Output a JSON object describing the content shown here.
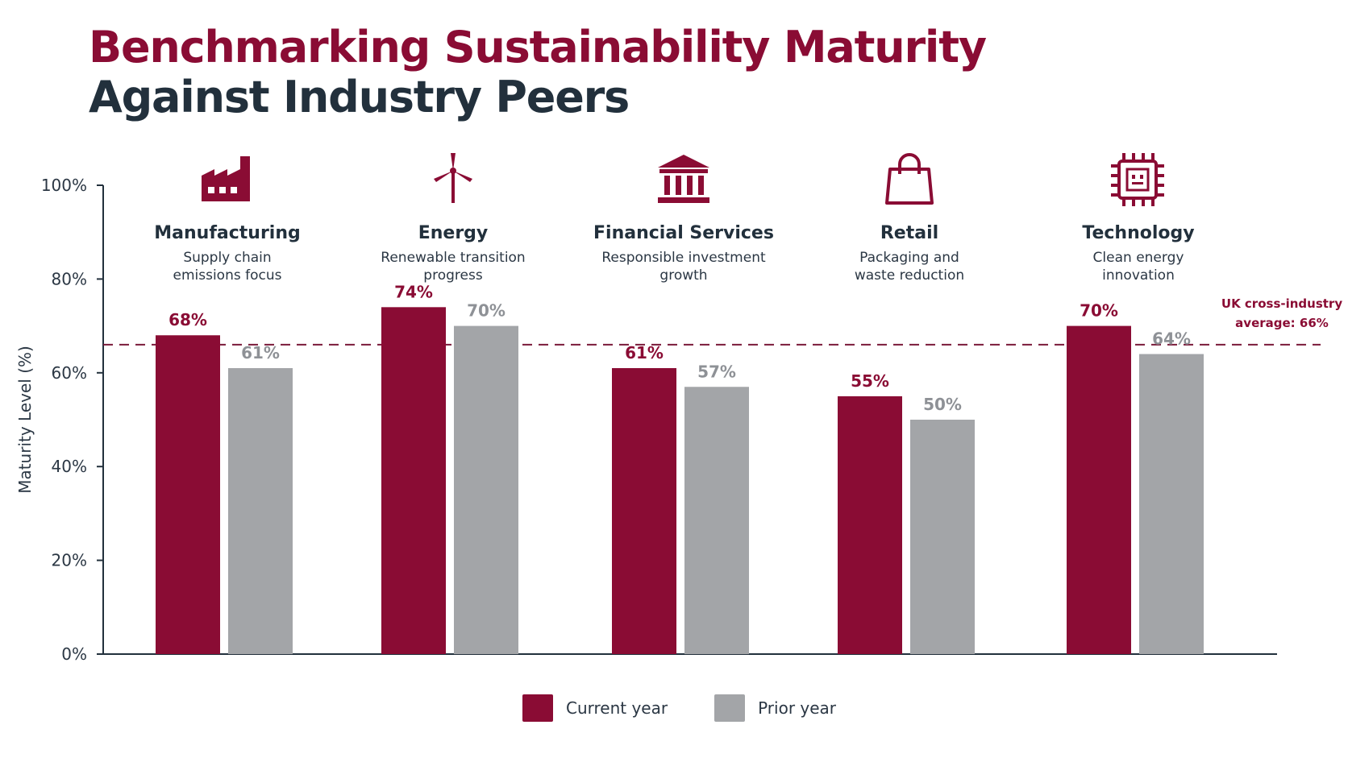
{
  "title": {
    "line1": "Benchmarking Sustainability Maturity",
    "line2": "Against Industry Peers"
  },
  "colors": {
    "current": "#8a0c34",
    "prior": "#a3a5a8",
    "title_primary": "#8a0c34",
    "title_secondary": "#22303c",
    "axis": "#22303c",
    "reference": "#7a1a3a"
  },
  "chart_data": {
    "type": "bar",
    "categories": [
      "Manufacturing",
      "Energy",
      "Financial Services",
      "Retail",
      "Technology"
    ],
    "category_subtitles": [
      [
        "Supply chain",
        "emissions focus"
      ],
      [
        "Renewable transition",
        "progress"
      ],
      [
        "Responsible investment",
        "growth"
      ],
      [
        "Packaging and",
        "waste reduction"
      ],
      [
        "Clean energy",
        "innovation"
      ]
    ],
    "category_icons": [
      "factory-icon",
      "wind-turbine-icon",
      "bank-icon",
      "shopping-bag-icon",
      "chip-icon"
    ],
    "series": [
      {
        "name": "Current year",
        "values": [
          68,
          74,
          61,
          55,
          70
        ]
      },
      {
        "name": "Prior year",
        "values": [
          61,
          70,
          57,
          50,
          64
        ]
      }
    ],
    "data_labels": {
      "Current year": [
        "68%",
        "74%",
        "61%",
        "55%",
        "70%"
      ],
      "Prior year": [
        "61%",
        "70%",
        "57%",
        "50%",
        "64%"
      ]
    },
    "ylabel": "Maturity Level (%)",
    "ylim": [
      0,
      100
    ],
    "yticks": [
      0,
      20,
      40,
      60,
      80,
      100
    ],
    "ytick_labels": [
      "0%",
      "20%",
      "40%",
      "60%",
      "80%",
      "100%"
    ],
    "reference_line": {
      "value": 66,
      "label_lines": [
        "UK cross-industry",
        "average: 66%"
      ]
    },
    "legend": [
      "Current year",
      "Prior year"
    ],
    "legend_position": "bottom-center",
    "grid": false
  }
}
